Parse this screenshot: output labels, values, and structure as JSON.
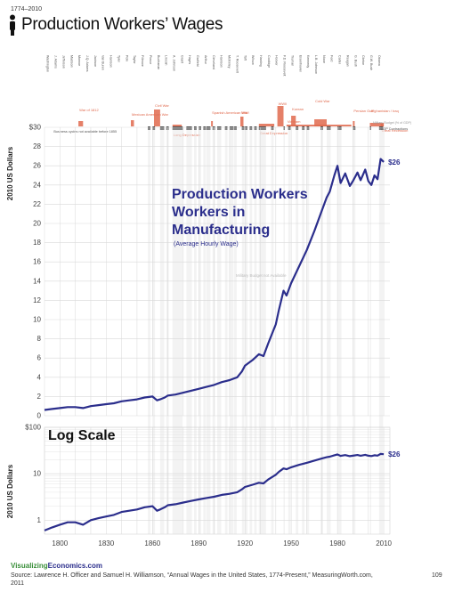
{
  "header": {
    "years": "1774–2010",
    "title": "Production Workers’ Wages"
  },
  "presidents": [
    "Washington",
    "J. Adams",
    "Jefferson",
    "Madison",
    "Monroe",
    "J.Q. Adams",
    "Jackson",
    "Van Buren",
    "Harrison",
    "Tyler",
    "Polk",
    "Taylor",
    "Fillmore",
    "Pierce",
    "Buchanan",
    "Lincoln",
    "A. Johnson",
    "Grant",
    "Hayes",
    "Garfield",
    "Arthur",
    "Cleveland",
    "Harrison",
    "McKinley",
    "T. Roosevelt",
    "Taft",
    "Wilson",
    "Harding",
    "Coolidge",
    "Hoover",
    "F.D. Roosevelt",
    "Truman",
    "Eisenhower",
    "Kennedy",
    "L.B. Johnson",
    "Nixon",
    "Ford",
    "Carter",
    "Reagan",
    "G. Bush",
    "Clinton",
    "G.W. Bush",
    "Obama"
  ],
  "events": [
    "War of 1812",
    "Mexican American War",
    "Civil War",
    "Long Depression",
    "Spanish American War",
    "WWI",
    "Great Depression",
    "WWII",
    "Korean",
    "Cold War",
    "Vietnam",
    "Persian Gulf",
    "Afghanistan / Iraq",
    "Great Recession"
  ],
  "contraction_notes": {
    "legend": "GDP Contractions",
    "budget_legend": "Military Budget (% of GDP)",
    "unavailable": "Business cycles not available before 1855"
  },
  "footer": {
    "brand_part1": "Visualizing",
    "brand_part2": "Economics.com",
    "source": "Source: Lawrence H. Officer and Samuel H. Williamson, “Annual Wages in the United States, 1774-Present,” MeasuringWorth.com, 2011",
    "page_number": "109"
  },
  "colors": {
    "series": "#2b2e8c",
    "events": "#e06a4e",
    "grid": "#d9d9d9",
    "contraction_band": "#e8e8e8",
    "end_label": "#2b2e8c"
  },
  "chart_data": [
    {
      "type": "line",
      "title": "Production Workers in Manufacturing",
      "subtitle": "(Average Hourly Wage)",
      "watermark": "Military Budget not Available",
      "ylabel": "2010 US Dollars",
      "xlim": [
        1790,
        2014
      ],
      "ylim": [
        0,
        30
      ],
      "yticks": [
        0,
        2,
        4,
        6,
        8,
        10,
        12,
        14,
        16,
        18,
        20,
        22,
        24,
        26,
        28,
        30
      ],
      "ytick_labels": [
        "0",
        "2",
        "4",
        "6",
        "8",
        "10",
        "12",
        "14",
        "16",
        "18",
        "20",
        "22",
        "24",
        "26",
        "28",
        "$30"
      ],
      "grid": true,
      "end_label": "$26",
      "series": [
        {
          "x": [
            1790,
            1795,
            1800,
            1805,
            1810,
            1815,
            1820,
            1825,
            1830,
            1835,
            1840,
            1845,
            1850,
            1855,
            1860,
            1863,
            1865,
            1868,
            1870,
            1875,
            1880,
            1885,
            1890,
            1895,
            1900,
            1905,
            1910,
            1915,
            1918,
            1920,
            1925,
            1929,
            1932,
            1935,
            1940,
            1942,
            1945,
            1947,
            1950,
            1955,
            1960,
            1965,
            1970,
            1973,
            1975,
            1978,
            1980,
            1982,
            1985,
            1988,
            1990,
            1993,
            1995,
            1998,
            2000,
            2002,
            2004,
            2006,
            2008,
            2010
          ],
          "y": [
            0.6,
            0.7,
            0.8,
            0.9,
            0.9,
            0.8,
            1.0,
            1.1,
            1.2,
            1.3,
            1.5,
            1.6,
            1.7,
            1.9,
            2.0,
            1.6,
            1.7,
            1.9,
            2.1,
            2.2,
            2.4,
            2.6,
            2.8,
            3.0,
            3.2,
            3.5,
            3.7,
            4.0,
            4.6,
            5.2,
            5.8,
            6.4,
            6.2,
            7.5,
            9.5,
            11.0,
            13.0,
            12.5,
            13.8,
            15.5,
            17.2,
            19.2,
            21.4,
            22.7,
            23.3,
            25.0,
            26.0,
            24.2,
            25.2,
            23.9,
            24.4,
            25.3,
            24.5,
            25.6,
            24.4,
            24.0,
            25.0,
            24.6,
            26.7,
            26.4
          ]
        }
      ]
    },
    {
      "type": "line",
      "title": "Log Scale",
      "ylabel": "2010 US Dollars",
      "scale": "log",
      "xlim": [
        1790,
        2014
      ],
      "ylim": [
        0.5,
        100
      ],
      "yticks": [
        1,
        10,
        100
      ],
      "ytick_labels": [
        "1",
        "10",
        "$100"
      ],
      "xticks": [
        1800,
        1830,
        1860,
        1890,
        1920,
        1950,
        1980,
        2010
      ],
      "xtick_labels": [
        "1800",
        "1830",
        "1860",
        "1890",
        "1920",
        "1950",
        "1980",
        "2010"
      ],
      "grid": true,
      "end_label": "$26",
      "series": [
        {
          "x": [
            1790,
            1795,
            1800,
            1805,
            1810,
            1815,
            1820,
            1825,
            1830,
            1835,
            1840,
            1845,
            1850,
            1855,
            1860,
            1863,
            1865,
            1868,
            1870,
            1875,
            1880,
            1885,
            1890,
            1895,
            1900,
            1905,
            1910,
            1915,
            1918,
            1920,
            1925,
            1929,
            1932,
            1935,
            1940,
            1942,
            1945,
            1947,
            1950,
            1955,
            1960,
            1965,
            1970,
            1973,
            1975,
            1978,
            1980,
            1982,
            1985,
            1988,
            1990,
            1993,
            1995,
            1998,
            2000,
            2002,
            2004,
            2006,
            2008,
            2010
          ],
          "y": [
            0.6,
            0.7,
            0.8,
            0.9,
            0.9,
            0.8,
            1.0,
            1.1,
            1.2,
            1.3,
            1.5,
            1.6,
            1.7,
            1.9,
            2.0,
            1.6,
            1.7,
            1.9,
            2.1,
            2.2,
            2.4,
            2.6,
            2.8,
            3.0,
            3.2,
            3.5,
            3.7,
            4.0,
            4.6,
            5.2,
            5.8,
            6.4,
            6.2,
            7.5,
            9.5,
            11.0,
            13.0,
            12.5,
            13.8,
            15.5,
            17.2,
            19.2,
            21.4,
            22.7,
            23.3,
            25.0,
            26.0,
            24.2,
            25.2,
            23.9,
            24.4,
            25.3,
            24.5,
            25.6,
            24.4,
            24.0,
            25.0,
            24.6,
            26.7,
            26.4
          ]
        }
      ]
    }
  ]
}
